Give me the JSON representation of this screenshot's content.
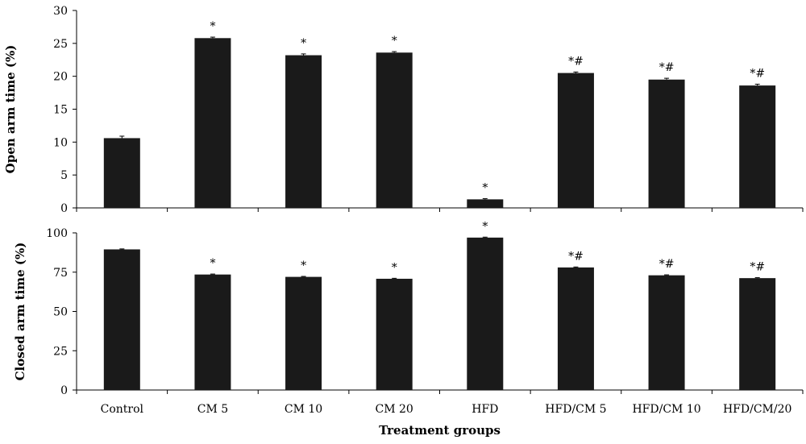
{
  "chart_data": [
    {
      "type": "bar",
      "ylabel": "Open arm time (%)",
      "xlabel": "",
      "ylim": [
        0,
        30
      ],
      "yticks": [
        0,
        5,
        10,
        15,
        20,
        25,
        30
      ],
      "categories": [
        "Control",
        "CM  5",
        "CM 10",
        "CM 20",
        "HFD",
        "HFD/CM 5",
        "HFD/CM 10",
        "HFD/CM/20"
      ],
      "values": [
        10.6,
        25.8,
        23.2,
        23.6,
        1.3,
        20.5,
        19.5,
        18.6
      ],
      "errors": [
        0.3,
        0.15,
        0.2,
        0.15,
        0.1,
        0.15,
        0.2,
        0.2
      ],
      "annotations": [
        "",
        "*",
        "*",
        "*",
        "*",
        "*#",
        "*#",
        "*#"
      ],
      "bar_color": "#1a1a1a",
      "grid": false
    },
    {
      "type": "bar",
      "ylabel": "Closed arm time (%)",
      "xlabel": "Treatment groups",
      "ylim": [
        0,
        100
      ],
      "yticks": [
        0,
        25,
        50,
        75,
        100
      ],
      "categories": [
        "Control",
        "CM  5",
        "CM 10",
        "CM 20",
        "HFD",
        "HFD/CM 5",
        "HFD/CM 10",
        "HFD/CM/20"
      ],
      "values": [
        89.5,
        73.5,
        72,
        70.8,
        97,
        78,
        73,
        71.2
      ],
      "errors": [
        0.3,
        0.3,
        0.3,
        0.3,
        0.3,
        0.3,
        0.3,
        0.3
      ],
      "annotations": [
        "",
        "*",
        "*",
        "*",
        "*",
        "*#",
        "*#",
        "*#"
      ],
      "bar_color": "#1a1a1a",
      "grid": false
    }
  ]
}
